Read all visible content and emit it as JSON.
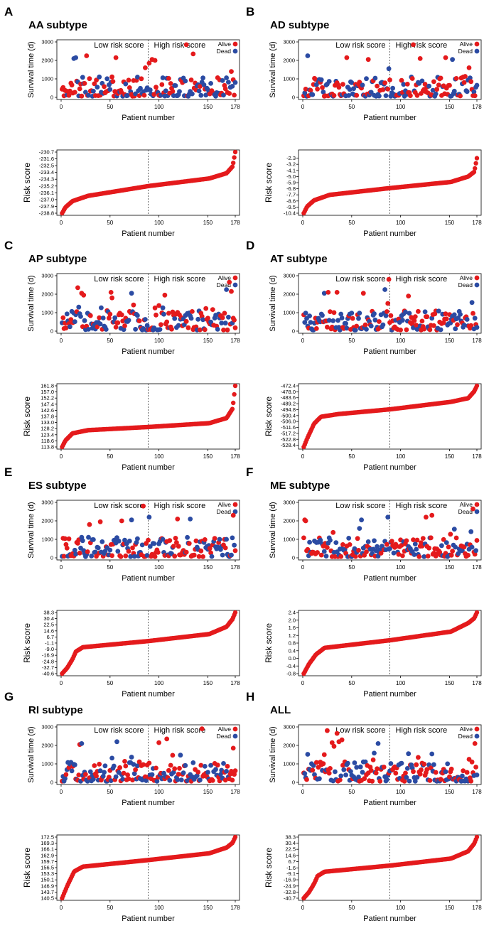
{
  "colors": {
    "alive": "#e41a1c",
    "dead": "#2b4ba3",
    "cutoff": "#555555"
  },
  "common": {
    "xlabel": "Patient number",
    "ylabel_survival": "Survival time (d)",
    "ylabel_risk": "Risk score",
    "low_label": "Low risk score",
    "high_label": "High risk score",
    "legend_alive": "Alive",
    "legend_dead": "Dead"
  },
  "chart_data": [
    {
      "letter": "A",
      "title": "AA subtype",
      "type": "scatter",
      "n": 178,
      "cutoff": 89,
      "x_ticks": [
        "0",
        "50",
        "100",
        "150",
        "178"
      ],
      "x_tick_values": [
        0,
        50,
        100,
        150,
        178
      ],
      "surv_ylim": [
        0,
        3000
      ],
      "surv_yticks": [
        "0",
        "1000",
        "2000",
        "3000"
      ],
      "surv_seed": 11,
      "surv_highlights": [
        [
          13,
          2100,
          1
        ],
        [
          15,
          2150,
          1
        ],
        [
          26,
          2250,
          0
        ],
        [
          56,
          2150,
          0
        ],
        [
          86,
          1600,
          0
        ],
        [
          90,
          1850,
          0
        ],
        [
          93,
          2050,
          0
        ],
        [
          96,
          2000,
          0
        ],
        [
          128,
          2850,
          0
        ],
        [
          135,
          2350,
          0
        ],
        [
          174,
          1400,
          0
        ]
      ],
      "risk_ylim": [
        -238.8,
        -230.7
      ],
      "risk_yticks": [
        "-230.7",
        "-231.6",
        "-232.5",
        "-233.4",
        "-234.3",
        "-235.2",
        "-236.1",
        "-237.0",
        "-237.9",
        "-238.8"
      ],
      "risk_curve": [
        [
          0,
          -238.8
        ],
        [
          0.02,
          -238.0
        ],
        [
          0.06,
          -237.2
        ],
        [
          0.15,
          -236.5
        ],
        [
          0.5,
          -235.2
        ],
        [
          0.85,
          -234.2
        ],
        [
          0.95,
          -233.5
        ],
        [
          0.985,
          -232.6
        ],
        [
          1,
          -230.7
        ]
      ]
    },
    {
      "letter": "B",
      "title": "AD subtype",
      "type": "scatter",
      "n": 178,
      "cutoff": 89,
      "x_ticks": [
        "0",
        "50",
        "100",
        "150",
        "178"
      ],
      "x_tick_values": [
        0,
        50,
        100,
        150,
        178
      ],
      "surv_ylim": [
        0,
        3000
      ],
      "surv_yticks": [
        "0",
        "1000",
        "2000",
        "3000"
      ],
      "surv_seed": 23,
      "surv_highlights": [
        [
          5,
          2250,
          1
        ],
        [
          45,
          2150,
          0
        ],
        [
          67,
          2050,
          0
        ],
        [
          88,
          1550,
          1
        ],
        [
          113,
          2850,
          0
        ],
        [
          120,
          2100,
          0
        ],
        [
          146,
          2150,
          0
        ],
        [
          153,
          2050,
          1
        ],
        [
          170,
          1600,
          0
        ]
      ],
      "risk_ylim": [
        -10.4,
        -1.4
      ],
      "risk_yticks": [
        "-2.3",
        "-3.2",
        "-4.1",
        "-5.0",
        "-5.9",
        "-6.8",
        "-7.7",
        "-8.6",
        "-9.5",
        "-10.4"
      ],
      "risk_curve": [
        [
          0,
          -10.4
        ],
        [
          0.02,
          -9.4
        ],
        [
          0.06,
          -8.5
        ],
        [
          0.15,
          -7.7
        ],
        [
          0.5,
          -6.7
        ],
        [
          0.85,
          -5.8
        ],
        [
          0.95,
          -5.0
        ],
        [
          0.985,
          -4.3
        ],
        [
          1,
          -2.3
        ]
      ]
    },
    {
      "letter": "C",
      "title": "AP subtype",
      "type": "scatter",
      "n": 178,
      "cutoff": 89,
      "x_ticks": [
        "0",
        "50",
        "100",
        "150",
        "178"
      ],
      "x_tick_values": [
        0,
        50,
        100,
        150,
        178
      ],
      "surv_ylim": [
        0,
        3000
      ],
      "surv_yticks": [
        "0",
        "1000",
        "2000",
        "3000"
      ],
      "surv_seed": 37,
      "surv_highlights": [
        [
          17,
          2350,
          0
        ],
        [
          21,
          2050,
          0
        ],
        [
          23,
          1950,
          0
        ],
        [
          51,
          2100,
          0
        ],
        [
          52,
          1800,
          0
        ],
        [
          72,
          2050,
          1
        ],
        [
          106,
          1950,
          0
        ],
        [
          169,
          2250,
          1
        ],
        [
          172,
          2650,
          0
        ],
        [
          174,
          2150,
          0
        ]
      ],
      "risk_ylim": [
        113.8,
        161.8
      ],
      "risk_yticks": [
        "161.8",
        "157.0",
        "152.2",
        "147.4",
        "142.6",
        "137.8",
        "133.0",
        "128.2",
        "123.4",
        "118.6",
        "113.8"
      ],
      "risk_curve": [
        [
          0,
          113.8
        ],
        [
          0.02,
          119.0
        ],
        [
          0.06,
          124.5
        ],
        [
          0.15,
          127.0
        ],
        [
          0.5,
          129.5
        ],
        [
          0.85,
          132.5
        ],
        [
          0.95,
          136.5
        ],
        [
          0.985,
          144.0
        ],
        [
          1,
          161.8
        ]
      ]
    },
    {
      "letter": "D",
      "title": "AT subtype",
      "type": "scatter",
      "n": 178,
      "cutoff": 89,
      "x_ticks": [
        "0",
        "50",
        "100",
        "150",
        "178"
      ],
      "x_tick_values": [
        0,
        50,
        100,
        150,
        178
      ],
      "surv_ylim": [
        0,
        3000
      ],
      "surv_yticks": [
        "0",
        "1000",
        "2000",
        "3000"
      ],
      "surv_seed": 41,
      "surv_highlights": [
        [
          22,
          2050,
          1
        ],
        [
          26,
          2100,
          0
        ],
        [
          35,
          2100,
          0
        ],
        [
          62,
          2050,
          0
        ],
        [
          84,
          2250,
          1
        ],
        [
          88,
          2800,
          0
        ],
        [
          87,
          1500,
          0
        ],
        [
          108,
          1900,
          0
        ],
        [
          173,
          1550,
          1
        ]
      ],
      "risk_ylim": [
        -530,
        -472.4
      ],
      "risk_yticks": [
        "-472.4",
        "-478.0",
        "-483.6",
        "-489.2",
        "-494.8",
        "-500.4",
        "-506.0",
        "-511.6",
        "-517.2",
        "-522.8",
        "-528.4"
      ],
      "risk_curve": [
        [
          0,
          -530
        ],
        [
          0.02,
          -522.0
        ],
        [
          0.06,
          -508.0
        ],
        [
          0.1,
          -501.5
        ],
        [
          0.2,
          -499.0
        ],
        [
          0.5,
          -494.5
        ],
        [
          0.85,
          -487.5
        ],
        [
          0.95,
          -484.0
        ],
        [
          0.985,
          -477.5
        ],
        [
          1,
          -472.4
        ]
      ]
    },
    {
      "letter": "E",
      "title": "ES subtype",
      "type": "scatter",
      "n": 178,
      "cutoff": 89,
      "x_ticks": [
        "0",
        "50",
        "100",
        "150",
        "178"
      ],
      "x_tick_values": [
        0,
        50,
        100,
        150,
        178
      ],
      "surv_ylim": [
        0,
        3000
      ],
      "surv_yticks": [
        "0",
        "1000",
        "2000",
        "3000"
      ],
      "surv_seed": 53,
      "surv_highlights": [
        [
          29,
          1800,
          0
        ],
        [
          40,
          1950,
          0
        ],
        [
          62,
          2000,
          0
        ],
        [
          72,
          2050,
          1
        ],
        [
          84,
          2800,
          0
        ],
        [
          90,
          2200,
          1
        ],
        [
          119,
          2100,
          0
        ],
        [
          132,
          2100,
          1
        ],
        [
          176,
          2300,
          0
        ]
      ],
      "risk_ylim": [
        -40.6,
        38.3
      ],
      "risk_yticks": [
        "38.3",
        "30.4",
        "22.5",
        "14.6",
        "6.7",
        "-1.1",
        "-9.0",
        "-16.9",
        "-24.8",
        "-32.7",
        "-40.6"
      ],
      "risk_curve": [
        [
          0,
          -40.6
        ],
        [
          0.03,
          -33.0
        ],
        [
          0.06,
          -22.0
        ],
        [
          0.08,
          -12.0
        ],
        [
          0.12,
          -6.5
        ],
        [
          0.5,
          1.5
        ],
        [
          0.85,
          10.5
        ],
        [
          0.95,
          20.0
        ],
        [
          0.985,
          30.0
        ],
        [
          1,
          38.3
        ]
      ]
    },
    {
      "letter": "F",
      "title": "ME subtype",
      "type": "scatter",
      "n": 178,
      "cutoff": 89,
      "x_ticks": [
        "0",
        "50",
        "100",
        "150",
        "178"
      ],
      "x_tick_values": [
        0,
        50,
        100,
        150,
        178
      ],
      "surv_ylim": [
        0,
        3000
      ],
      "surv_yticks": [
        "0",
        "1000",
        "2000",
        "3000"
      ],
      "surv_seed": 67,
      "surv_highlights": [
        [
          2,
          2050,
          0
        ],
        [
          3,
          2000,
          0
        ],
        [
          60,
          2050,
          1
        ],
        [
          87,
          2200,
          1
        ],
        [
          126,
          2200,
          0
        ],
        [
          132,
          2300,
          0
        ],
        [
          155,
          1550,
          1
        ],
        [
          174,
          2650,
          0
        ]
      ],
      "risk_ylim": [
        -0.8,
        2.4
      ],
      "risk_yticks": [
        "2.4",
        "2.0",
        "1.6",
        "1.2",
        "0.8",
        "0.4",
        "0.0",
        "-0.4",
        "-0.8"
      ],
      "risk_curve": [
        [
          0,
          -0.8
        ],
        [
          0.03,
          -0.3
        ],
        [
          0.07,
          0.2
        ],
        [
          0.12,
          0.55
        ],
        [
          0.5,
          0.95
        ],
        [
          0.85,
          1.4
        ],
        [
          0.95,
          1.85
        ],
        [
          0.985,
          2.1
        ],
        [
          1,
          2.4
        ]
      ]
    },
    {
      "letter": "G",
      "title": "RI subtype",
      "type": "scatter",
      "n": 178,
      "cutoff": 89,
      "x_ticks": [
        "0",
        "50",
        "100",
        "150",
        "178"
      ],
      "x_tick_values": [
        0,
        50,
        100,
        150,
        178
      ],
      "surv_ylim": [
        0,
        3000
      ],
      "surv_yticks": [
        "0",
        "1000",
        "2000",
        "3000"
      ],
      "surv_seed": 79,
      "surv_highlights": [
        [
          19,
          2050,
          0
        ],
        [
          21,
          2100,
          1
        ],
        [
          57,
          2200,
          1
        ],
        [
          100,
          2150,
          0
        ],
        [
          108,
          2350,
          0
        ],
        [
          144,
          2900,
          0
        ],
        [
          176,
          1850,
          0
        ]
      ],
      "risk_ylim": [
        140.5,
        172.5
      ],
      "risk_yticks": [
        "172.5",
        "169.3",
        "166.1",
        "162.9",
        "159.7",
        "156.5",
        "153.3",
        "150.1",
        "146.9",
        "143.7",
        "140.5"
      ],
      "risk_curve": [
        [
          0,
          140.5
        ],
        [
          0.03,
          147.0
        ],
        [
          0.07,
          154.5
        ],
        [
          0.12,
          157.0
        ],
        [
          0.5,
          160.5
        ],
        [
          0.85,
          164.0
        ],
        [
          0.95,
          167.0
        ],
        [
          0.985,
          169.5
        ],
        [
          1,
          172.5
        ]
      ]
    },
    {
      "letter": "H",
      "title": "ALL",
      "type": "scatter",
      "n": 178,
      "cutoff": 89,
      "x_ticks": [
        "0",
        "50",
        "100",
        "150",
        "178"
      ],
      "x_tick_values": [
        0,
        50,
        100,
        150,
        178
      ],
      "surv_ylim": [
        0,
        3000
      ],
      "surv_yticks": [
        "0",
        "1000",
        "2000",
        "3000"
      ],
      "surv_seed": 97,
      "surv_highlights": [
        [
          25,
          2800,
          0
        ],
        [
          30,
          2150,
          0
        ],
        [
          32,
          1950,
          0
        ],
        [
          35,
          2650,
          0
        ],
        [
          37,
          2200,
          0
        ],
        [
          40,
          2300,
          0
        ],
        [
          22,
          1500,
          0
        ],
        [
          77,
          2100,
          1
        ],
        [
          108,
          1550,
          1
        ],
        [
          118,
          1350,
          0
        ],
        [
          176,
          2100,
          0
        ],
        [
          170,
          1250,
          0
        ]
      ],
      "risk_ylim": [
        -40.7,
        38.3
      ],
      "risk_yticks": [
        "38.3",
        "30.4",
        "22.5",
        "14.6",
        "6.7",
        "-1.6",
        "-9.1",
        "-16.9",
        "-24.9",
        "-32.8",
        "-40.7"
      ],
      "risk_curve": [
        [
          0,
          -40.7
        ],
        [
          0.03,
          -33.0
        ],
        [
          0.06,
          -22.0
        ],
        [
          0.08,
          -12.0
        ],
        [
          0.12,
          -6.5
        ],
        [
          0.5,
          1.5
        ],
        [
          0.85,
          10.5
        ],
        [
          0.95,
          20.0
        ],
        [
          0.985,
          30.0
        ],
        [
          1,
          38.3
        ]
      ]
    }
  ]
}
